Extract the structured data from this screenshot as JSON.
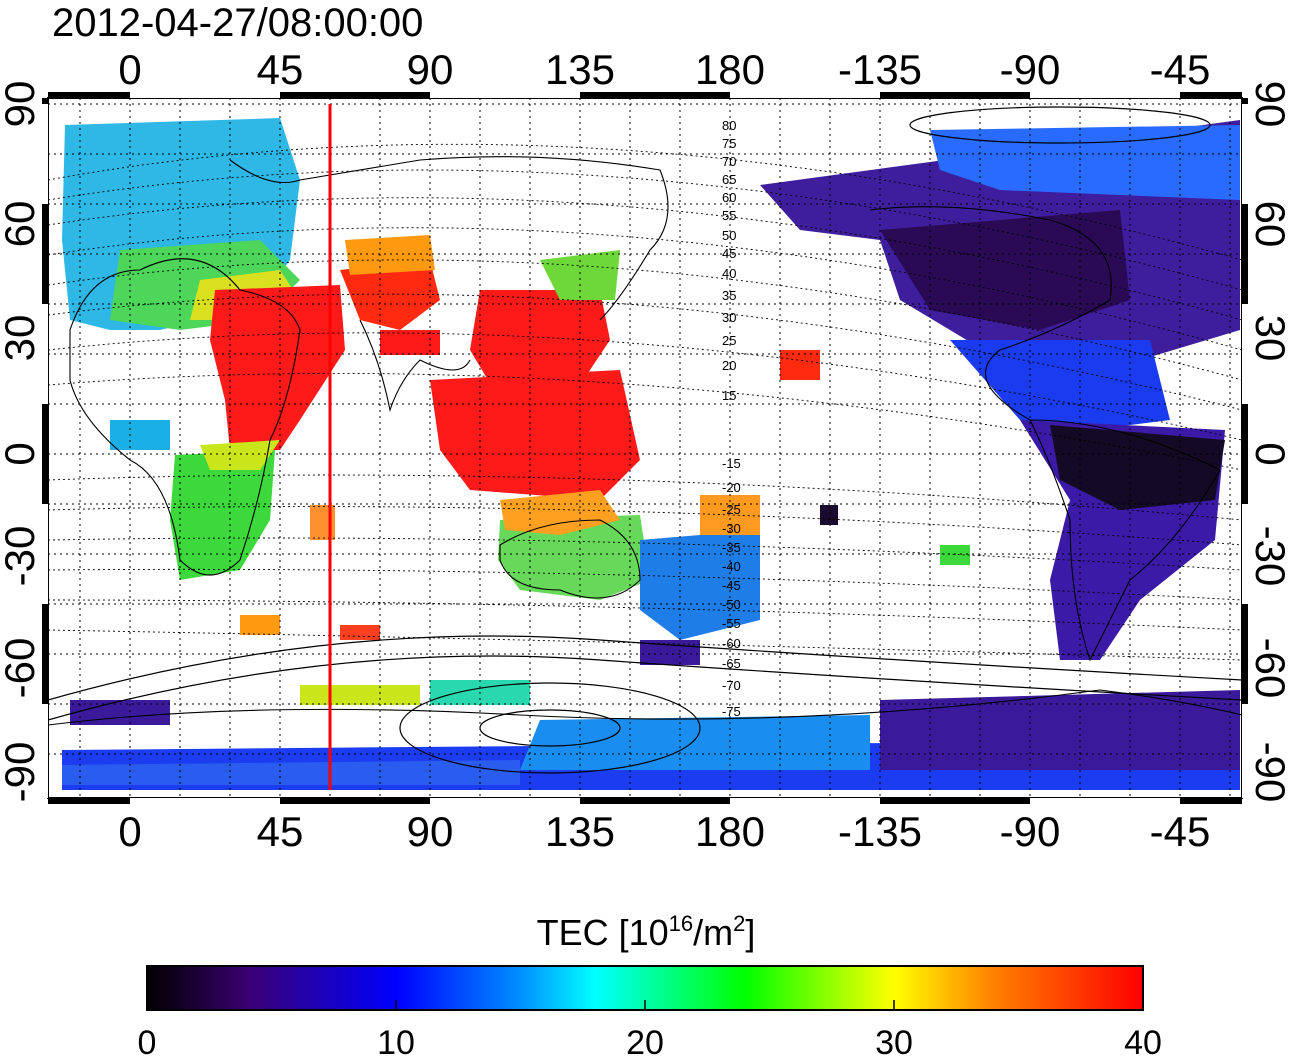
{
  "header": {
    "timestamp": "2012-04-27/08:00:00"
  },
  "map": {
    "lon_ticks": [
      "0",
      "45",
      "90",
      "135",
      "180",
      "-135",
      "-90",
      "-45"
    ],
    "lat_ticks_left": [
      "90",
      "60",
      "30",
      "0",
      "-30",
      "-60",
      "-90"
    ],
    "lat_ticks_right": [
      "90",
      "60",
      "30",
      "0",
      "-30",
      "-60",
      "-90"
    ],
    "contour_labels": [
      "80",
      "75",
      "70",
      "65",
      "60",
      "55",
      "50",
      "45",
      "40",
      "35",
      "30",
      "25",
      "20",
      "15",
      "-15",
      "-20",
      "-25",
      "-30",
      "-35",
      "-40",
      "-45",
      "-50",
      "-55",
      "-60",
      "-65",
      "-70",
      "-75"
    ],
    "marker_line": {
      "longitude": 60,
      "color": "#ff0000"
    },
    "grid": "dotted"
  },
  "colorbar": {
    "title_prefix": "TEC  [10",
    "title_sup1": "16",
    "title_mid": "/m",
    "title_sup2": "2",
    "title_suffix": "]",
    "tick_labels": [
      "0",
      "10",
      "20",
      "30",
      "40"
    ],
    "range": [
      0,
      40
    ],
    "colors": [
      "#000000",
      "#3a0070",
      "#0000ff",
      "#00ffff",
      "#00ff00",
      "#ffff00",
      "#ff0000"
    ]
  }
}
